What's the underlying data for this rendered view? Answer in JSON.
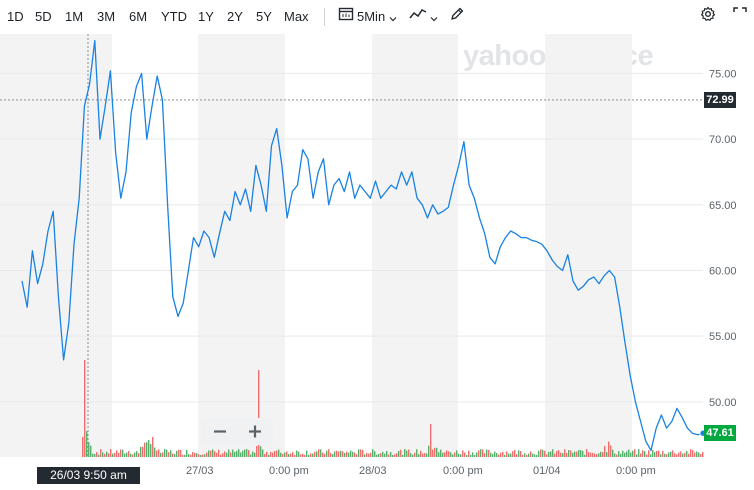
{
  "toolbar": {
    "ranges": [
      "1D",
      "5D",
      "1M",
      "3M",
      "6M",
      "YTD",
      "1Y",
      "2Y",
      "5Y",
      "Max"
    ],
    "interval": "5Min"
  },
  "watermark": "yahoo!finance",
  "crosshair": {
    "date_label": "26/03 9:50 am",
    "price_label": "72.99"
  },
  "last_price": "47.61",
  "colors": {
    "line": "#1a82e2",
    "last_price_bg": "#00a83f",
    "crosshair_bg": "#232a31",
    "vol_up": "#55b06b",
    "vol_down": "#f06e6e",
    "shade": "#f3f3f3"
  },
  "chart_data": {
    "type": "line",
    "x_tick_labels": [
      "27/03",
      "0:00 pm",
      "28/03",
      "0:00 pm",
      "01/04",
      "0:00 pm"
    ],
    "y_tick_labels": [
      "75.00",
      "70.00",
      "65.00",
      "60.00",
      "55.00",
      "50.00"
    ],
    "ylim": [
      45.8,
      78.0
    ],
    "series": [
      {
        "values": [
          59.2,
          57.2,
          61.5,
          59.0,
          60.5,
          63.0,
          64.5,
          58.0,
          53.2,
          56.0,
          62.0,
          65.5,
          72.5,
          74.2,
          77.5,
          70.0,
          72.5,
          75.2,
          69.0,
          65.5,
          67.5,
          72.0,
          74.0,
          75.0,
          70.0,
          72.5,
          74.8,
          73.0,
          65.0,
          58.0,
          56.5,
          57.5,
          60.0,
          62.5,
          61.8,
          63.0,
          62.5,
          61.0,
          62.8,
          64.5,
          63.8,
          66.0,
          65.0,
          66.2,
          64.5,
          68.0,
          66.5,
          64.5,
          69.5,
          70.8,
          68.0,
          64.0,
          66.0,
          66.5,
          69.2,
          68.5,
          65.5,
          67.5,
          68.5,
          65.0,
          66.5,
          67.0,
          66.0,
          67.5,
          65.5,
          66.5,
          66.0,
          65.5,
          66.8,
          65.5,
          66.0,
          66.5,
          66.2,
          67.5,
          66.5,
          67.5,
          65.5,
          65.0,
          64.0,
          65.0,
          64.3,
          64.5,
          64.8,
          66.5,
          68.0,
          69.8,
          66.5,
          65.5,
          64.0,
          62.8,
          61.0,
          60.5,
          61.8,
          62.5,
          63.0,
          62.8,
          62.5,
          62.5,
          62.3,
          62.2,
          62.0,
          61.5,
          60.8,
          60.3,
          60.0,
          61.2,
          59.2,
          58.5,
          58.8,
          59.3,
          59.5,
          59.0,
          59.6,
          60.0,
          59.5,
          57.2,
          54.5,
          52.0,
          50.0,
          48.5,
          47.0,
          46.3,
          48.0,
          49.0,
          48.0,
          48.5,
          49.5,
          48.8,
          48.0,
          47.6,
          47.5,
          47.61
        ]
      }
    ]
  }
}
